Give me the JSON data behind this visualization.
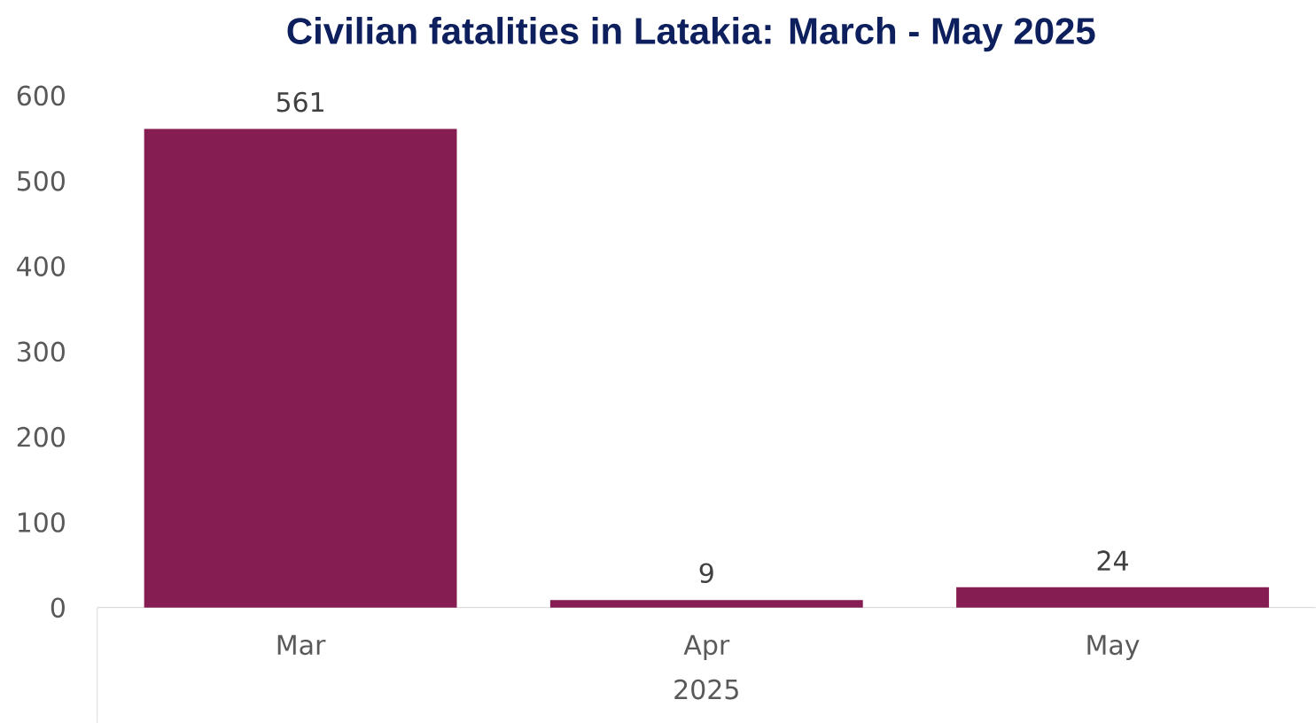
{
  "chart_data": {
    "type": "bar",
    "title": "Civilian fatalities in Latakia: March - May 2025",
    "categories": [
      "Mar",
      "Apr",
      "May"
    ],
    "xlabel": "2025",
    "values": [
      561,
      9,
      24
    ],
    "color": "#861d52",
    "ylim": [
      0,
      600
    ],
    "yticks": [
      0,
      100,
      200,
      300,
      400,
      500,
      600
    ],
    "data_labels": true
  }
}
